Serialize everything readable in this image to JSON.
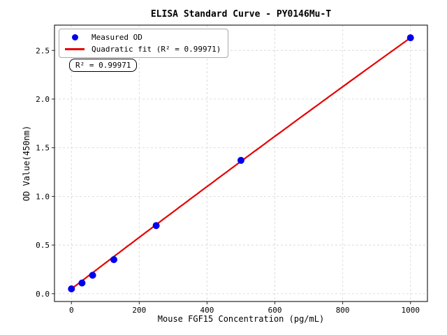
{
  "chart_data": {
    "type": "scatter",
    "title": "ELISA Standard Curve - PY0146Mu-T",
    "xlabel": "Mouse FGF15 Concentration (pg/mL)",
    "ylabel": "OD Value(450nm)",
    "xlim": [
      -50,
      1050
    ],
    "ylim": [
      -0.08,
      2.76
    ],
    "grid": true,
    "grid_style": "dashed",
    "legend_position": "upper-left",
    "x_ticks": [
      {
        "v": 0,
        "label": "0"
      },
      {
        "v": 200,
        "label": "200"
      },
      {
        "v": 400,
        "label": "400"
      },
      {
        "v": 600,
        "label": "600"
      },
      {
        "v": 800,
        "label": "800"
      },
      {
        "v": 1000,
        "label": "1000"
      }
    ],
    "y_ticks": [
      {
        "v": 0.0,
        "label": "0.0"
      },
      {
        "v": 0.5,
        "label": "0.5"
      },
      {
        "v": 1.0,
        "label": "1.0"
      },
      {
        "v": 1.5,
        "label": "1.5"
      },
      {
        "v": 2.0,
        "label": "2.0"
      },
      {
        "v": 2.5,
        "label": "2.5"
      }
    ],
    "series": [
      {
        "name": "Measured OD",
        "marker": "circle",
        "color": "#0000ee",
        "x": [
          0,
          31.25,
          62.5,
          125,
          250,
          500,
          1000
        ],
        "y": [
          0.05,
          0.11,
          0.19,
          0.35,
          0.7,
          1.37,
          2.63
        ]
      }
    ],
    "fit": {
      "name": "Quadratic fit",
      "type": "quadratic",
      "color": "#e60000",
      "a": 0.05,
      "b": 0.00266,
      "c": -8e-08,
      "r2": "0.99971",
      "x_range": [
        0,
        1000
      ]
    },
    "legend": [
      {
        "marker": "dot",
        "color": "#0000ee",
        "label": "Measured OD"
      },
      {
        "marker": "line",
        "color": "#e60000",
        "label": "Quadratic fit (R² = 0.99971)"
      }
    ],
    "annotation": "R² = 0.99971",
    "colors": {
      "grid": "#d9d9d9",
      "spine": "#262626",
      "text": "#000000",
      "background": "#ffffff"
    }
  }
}
